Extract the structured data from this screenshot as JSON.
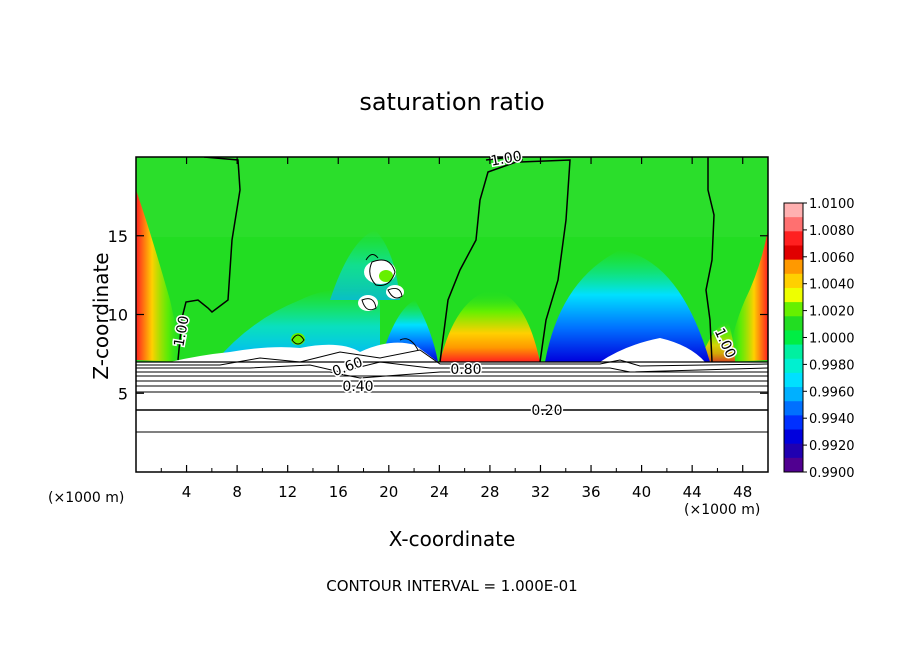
{
  "chart_data": {
    "type": "heatmap",
    "title": "saturation ratio",
    "xlabel": "X-coordinate",
    "ylabel": "Z-coordinate",
    "x_unit_label": "(×1000 m)",
    "xlim": [
      0,
      50
    ],
    "ylim": [
      0,
      20
    ],
    "x_ticks": [
      "4",
      "8",
      "12",
      "16",
      "20",
      "24",
      "28",
      "32",
      "36",
      "40",
      "44",
      "48"
    ],
    "y_ticks": [
      "5",
      "10",
      "15"
    ],
    "colorbar": {
      "labels": [
        "1.0100",
        "1.0080",
        "1.0060",
        "1.0040",
        "1.0020",
        "1.0000",
        "0.9980",
        "0.9960",
        "0.9940",
        "0.9920",
        "0.9900"
      ],
      "colors": [
        "#ffb0b0",
        "#ff7070",
        "#ff2020",
        "#e00000",
        "#ff9900",
        "#ffd000",
        "#eeff00",
        "#66f000",
        "#22dd22",
        "#00ee44",
        "#00f0a0",
        "#00f0d0",
        "#00e0ff",
        "#00b0ff",
        "#0070ff",
        "#0030ff",
        "#0000dd",
        "#2000b0",
        "#500090"
      ]
    },
    "contour_labels": [
      "1.00",
      "1.00",
      "1.00",
      "0.80",
      "0.60",
      "0.40",
      "0.20"
    ],
    "footer": "CONTOUR INTERVAL = 1.000E-01"
  }
}
